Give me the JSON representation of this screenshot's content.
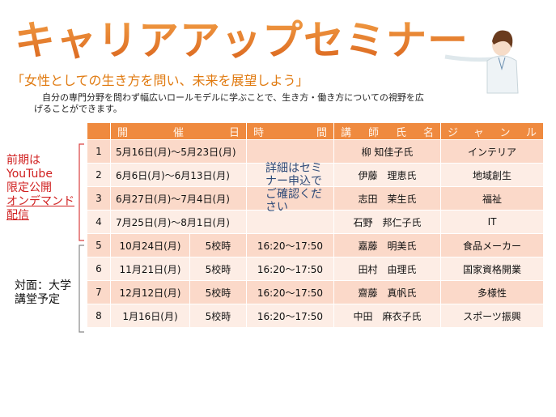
{
  "header": {
    "title": "キャリアアップセミナー",
    "subtitle": "「女性としての生き方を問い、未来を展望しよう」",
    "description": "自分の専門分野を問わず幅広いロールモデルに学ぶことで、生き方・働き方についての視野を広げることができます。"
  },
  "groups": [
    {
      "lines": [
        "前期は",
        "YouTube",
        "限定公開"
      ],
      "link_lines": [
        "オンデマンド",
        "配信"
      ]
    },
    {
      "lines": [
        "対面：大学",
        "講堂予定"
      ]
    }
  ],
  "table": {
    "columns": [
      "開催日",
      "時間",
      "講師氏名",
      "ジャンル"
    ],
    "note": "詳細はセミナー申込でご確認ください",
    "online_rows": [
      {
        "no": "1",
        "date": "5月16日(月)～5月23日(月)",
        "lecturer": "柳 知佳子氏",
        "genre": "インテリア"
      },
      {
        "no": "2",
        "date": "6月6日(月)～6月13日(月)",
        "lecturer": "伊藤　理恵氏",
        "genre": "地域創生"
      },
      {
        "no": "3",
        "date": "6月27日(月)～7月4日(月)",
        "lecturer": "志田　茉生氏",
        "genre": "福祉"
      },
      {
        "no": "4",
        "date": "7月25日(月)～8月1日(月)",
        "lecturer": "石野　邦仁子氏",
        "genre": "IT"
      }
    ],
    "face_rows": [
      {
        "no": "5",
        "date": "10月24日(月)",
        "period": "5校時",
        "time": "16:20～17:50",
        "lecturer": "嘉藤　明美氏",
        "genre": "食品メーカー"
      },
      {
        "no": "6",
        "date": "11月21日(月)",
        "period": "5校時",
        "time": "16:20～17:50",
        "lecturer": "田村　由理氏",
        "genre": "国家資格開業"
      },
      {
        "no": "7",
        "date": "12月12日(月)",
        "period": "5校時",
        "time": "16:20～17:50",
        "lecturer": "齋藤　真帆氏",
        "genre": "多様性"
      },
      {
        "no": "8",
        "date": "1月16日(月)",
        "period": "5校時",
        "time": "16:20～17:50",
        "lecturer": "中田　麻衣子氏",
        "genre": "スポーツ振興"
      }
    ]
  }
}
